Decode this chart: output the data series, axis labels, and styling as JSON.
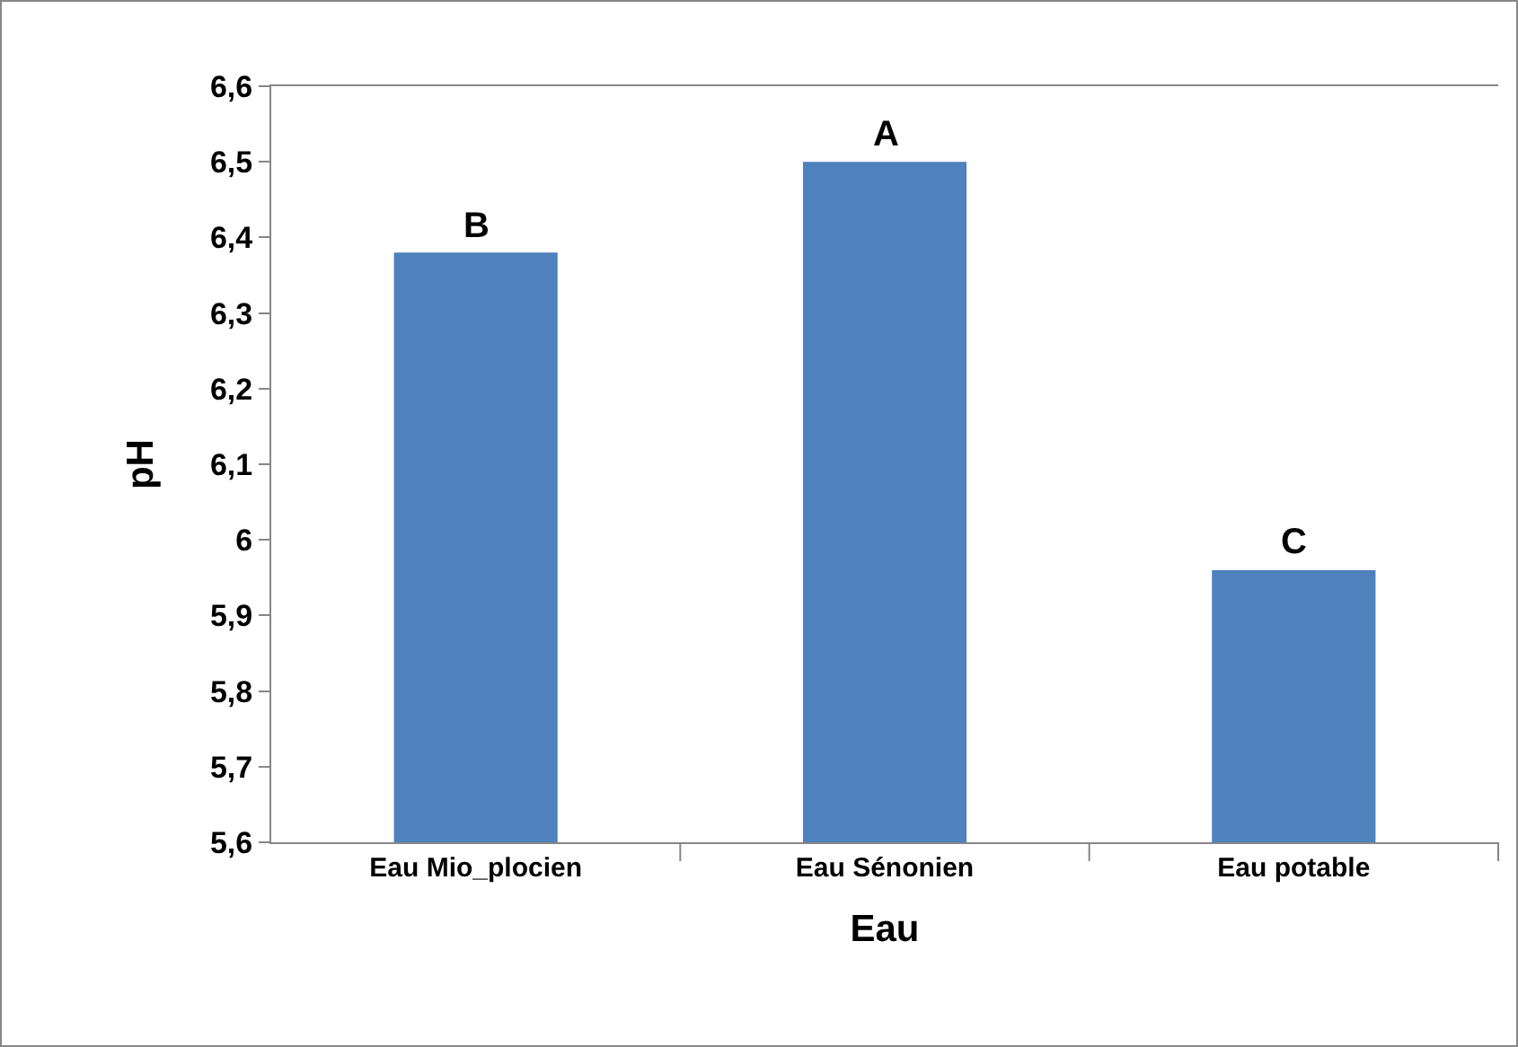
{
  "chart_data": {
    "type": "bar",
    "xlabel": "Eau",
    "ylabel": "pH",
    "categories": [
      "Eau Mio_plocien",
      "Eau Sénonien",
      "Eau potable"
    ],
    "values": [
      6.38,
      6.5,
      5.96
    ],
    "color": "#4f81bd",
    "ylim": [
      5.6,
      6.6
    ],
    "yticks": [
      {
        "value": 5.6,
        "label": "5,6"
      },
      {
        "value": 5.7,
        "label": "5,7"
      },
      {
        "value": 5.8,
        "label": "5,8"
      },
      {
        "value": 5.9,
        "label": "5,9"
      },
      {
        "value": 6,
        "label": "6"
      },
      {
        "value": 6.1,
        "label": "6,1"
      },
      {
        "value": 6.2,
        "label": "6,2"
      },
      {
        "value": 6.3,
        "label": "6,3"
      },
      {
        "value": 6.4,
        "label": "6,4"
      },
      {
        "value": 6.5,
        "label": "6,5"
      },
      {
        "value": 6.6,
        "label": "6,6"
      }
    ],
    "grid": false,
    "annotations": [
      {
        "text": "B",
        "x": "Eau Mio_plocien",
        "y": 6.38
      },
      {
        "text": "A",
        "x": "Eau Sénonien",
        "y": 6.5
      },
      {
        "text": "C",
        "x": "Eau potable",
        "y": 5.96
      }
    ]
  }
}
